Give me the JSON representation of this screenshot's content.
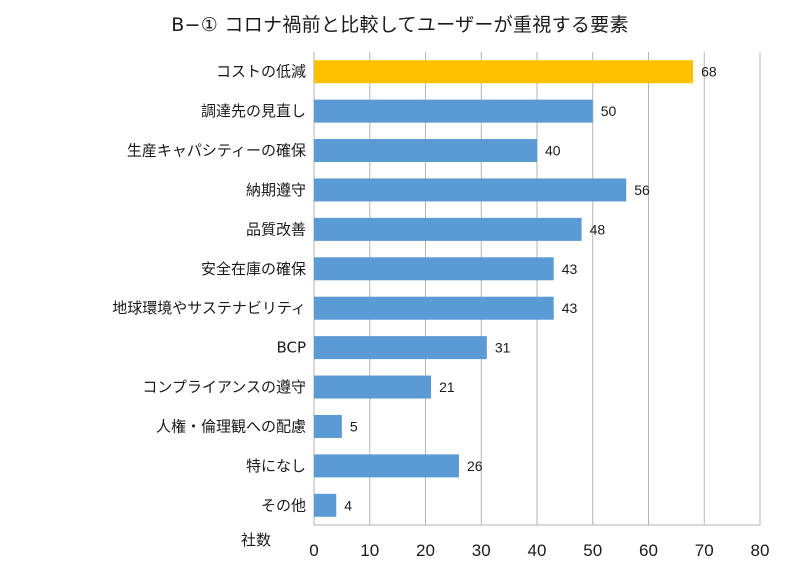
{
  "chart_data": {
    "type": "bar",
    "orientation": "horizontal",
    "title": "B−① コロナ禍前と比較してユーザーが重視する要素",
    "ylabel": "社数",
    "xlabel": "",
    "xlim": [
      0,
      80
    ],
    "xticks": [
      0,
      10,
      20,
      30,
      40,
      50,
      60,
      70,
      80
    ],
    "grid": "vertical",
    "categories": [
      "コストの低減",
      "調達先の見直し",
      "生産キャパシティーの確保",
      "納期遵守",
      "品質改善",
      "安全在庫の確保",
      "地球環境やサステナビリティ",
      "BCP",
      "コンプライアンスの遵守",
      "人権・倫理観への配慮",
      "特になし",
      "その他"
    ],
    "values": [
      68,
      50,
      40,
      56,
      48,
      43,
      43,
      31,
      21,
      5,
      26,
      4
    ],
    "highlight_index": 0,
    "colors": {
      "bar": "#5b9bd5",
      "highlight": "#ffc000",
      "grid": "#b3b3b3",
      "text": "#1a1a1a"
    }
  }
}
